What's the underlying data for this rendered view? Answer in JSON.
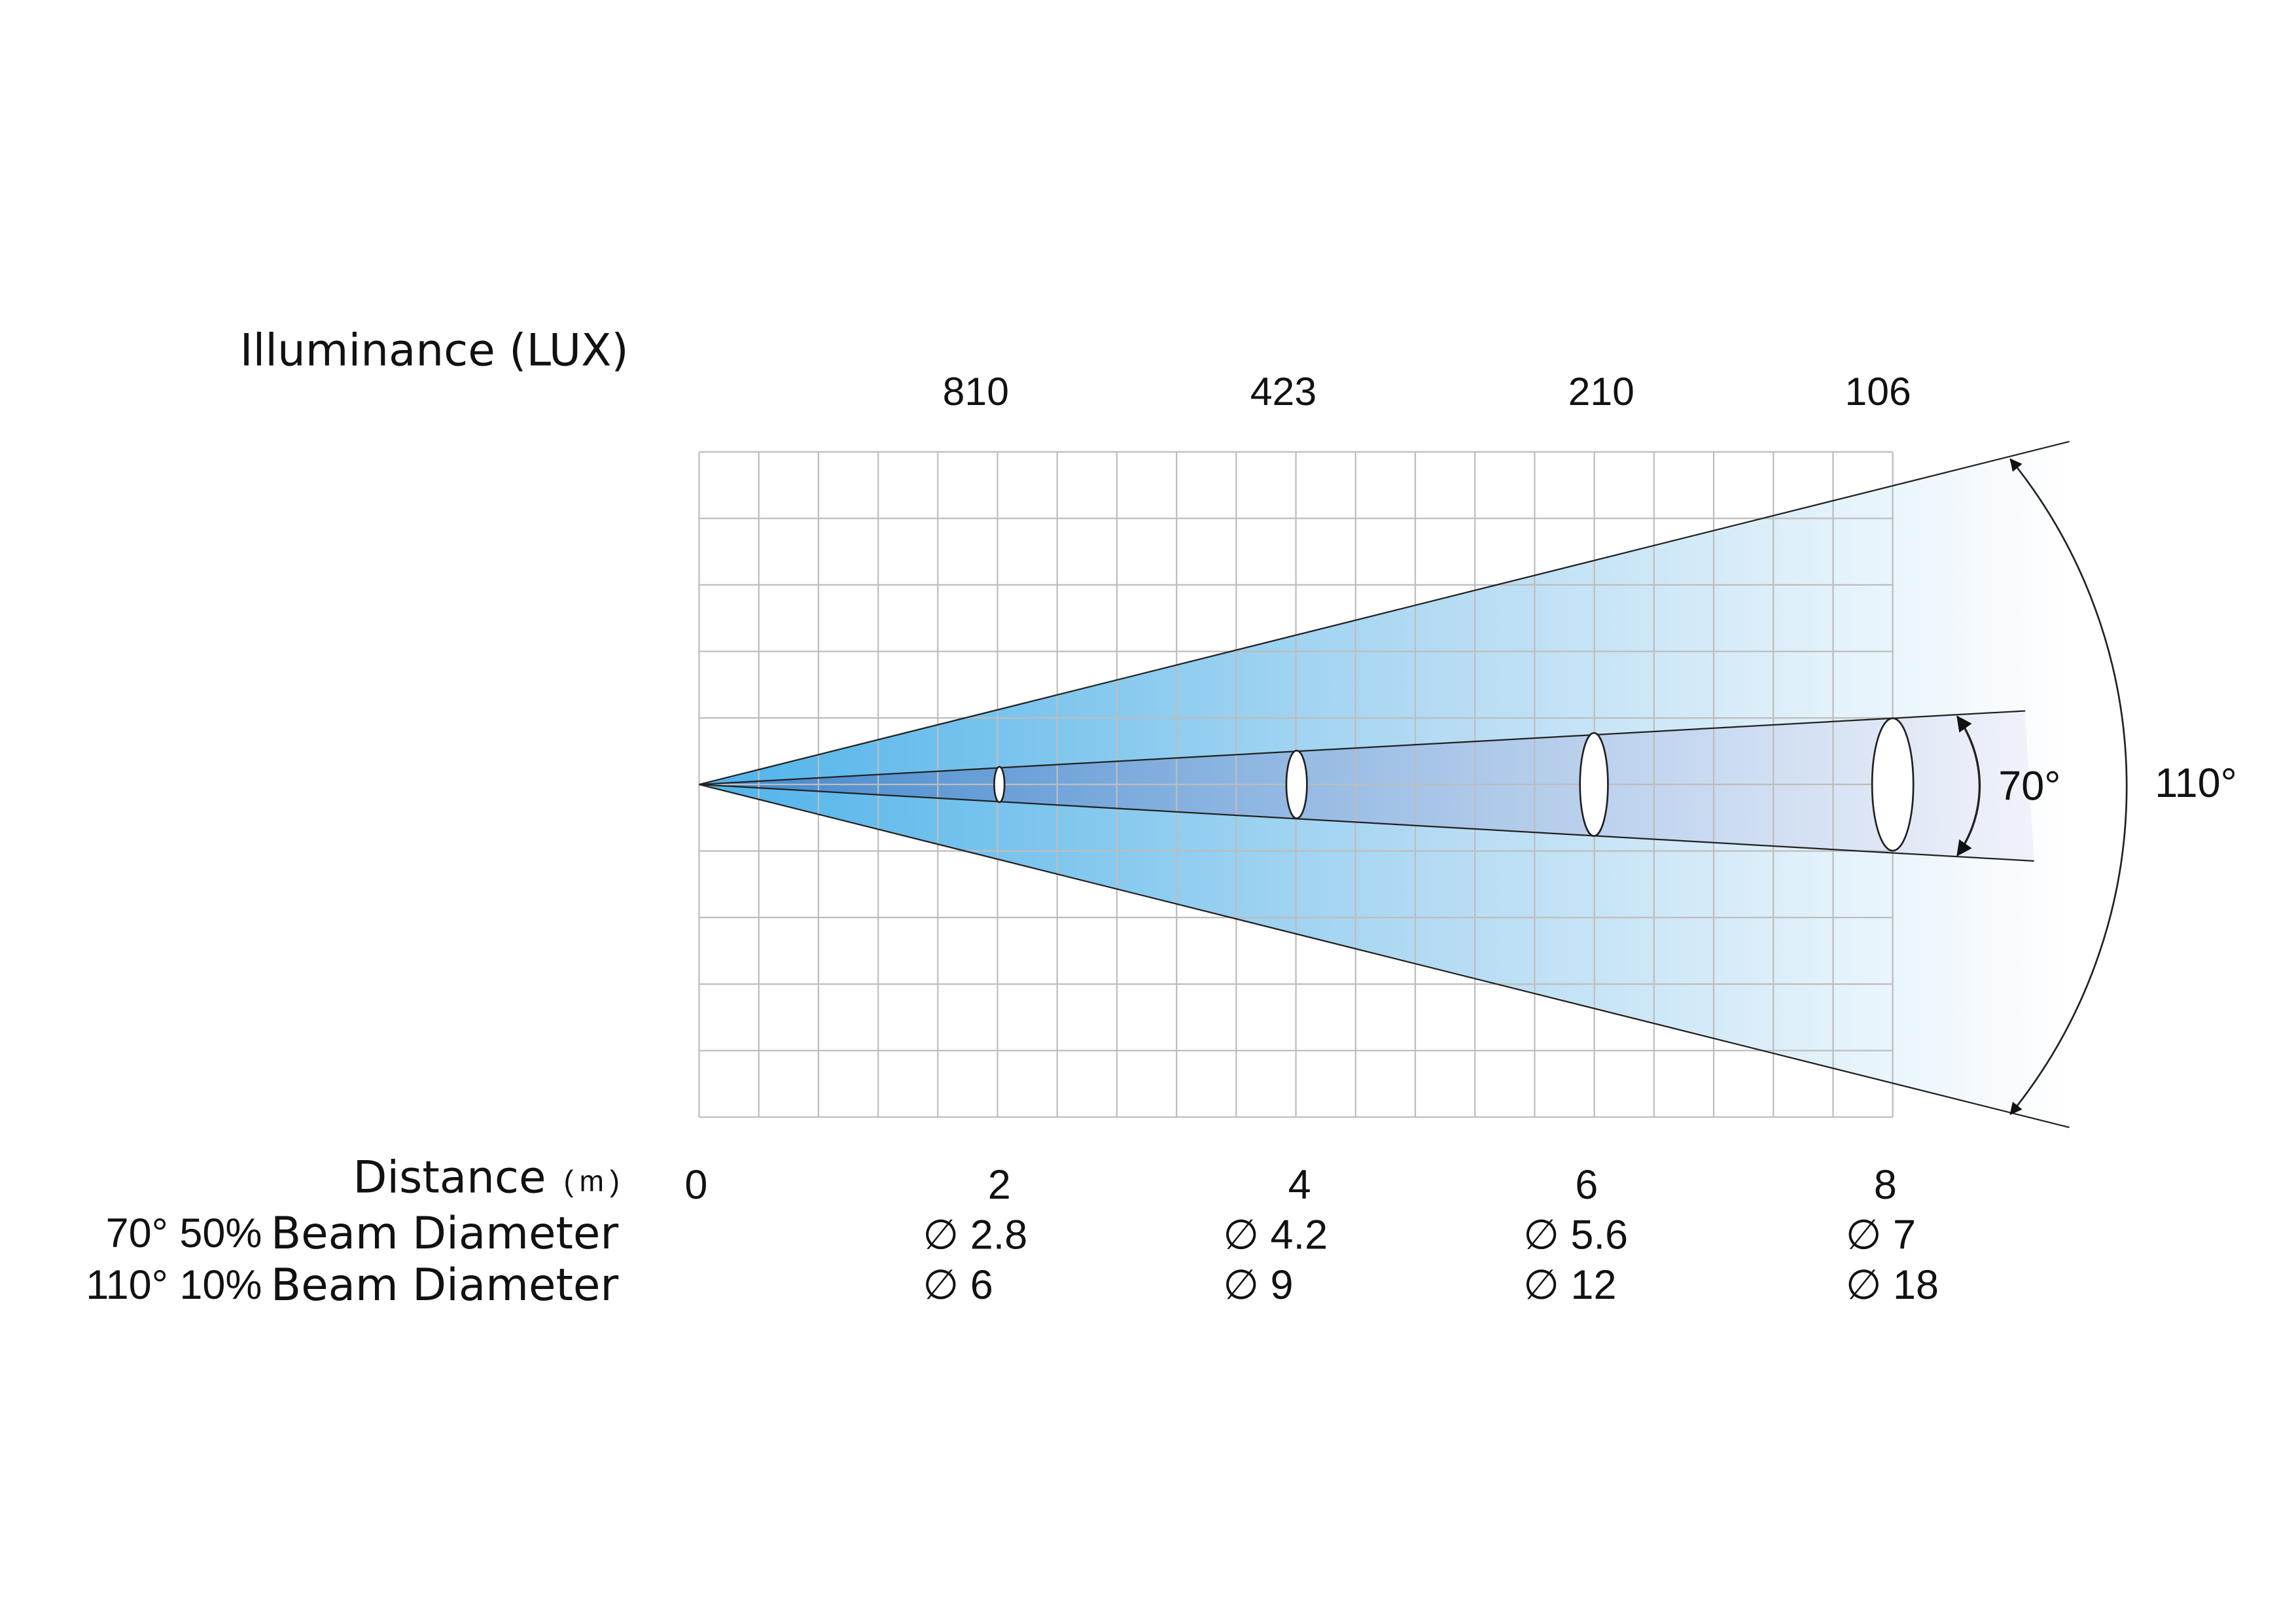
{
  "header": {
    "title": "Illuminance (LUX)"
  },
  "illuminance": [
    "810",
    "423",
    "210",
    "106"
  ],
  "distance": {
    "label": "Distance",
    "unit": "(m)",
    "values": [
      "0",
      "2",
      "4",
      "6",
      "8"
    ]
  },
  "beam_rows": [
    {
      "angle": "70° 50%",
      "label": "Beam Diameter",
      "diameters": [
        "∅ 2.8",
        "∅ 4.2",
        "∅ 5.6",
        "∅ 7"
      ]
    },
    {
      "angle": "110° 10%",
      "label": "Beam Diameter",
      "diameters": [
        "∅ 6",
        "∅ 9",
        "∅ 12",
        "∅ 18"
      ]
    }
  ],
  "angles": {
    "inner": "70°",
    "outer": "110°"
  }
}
